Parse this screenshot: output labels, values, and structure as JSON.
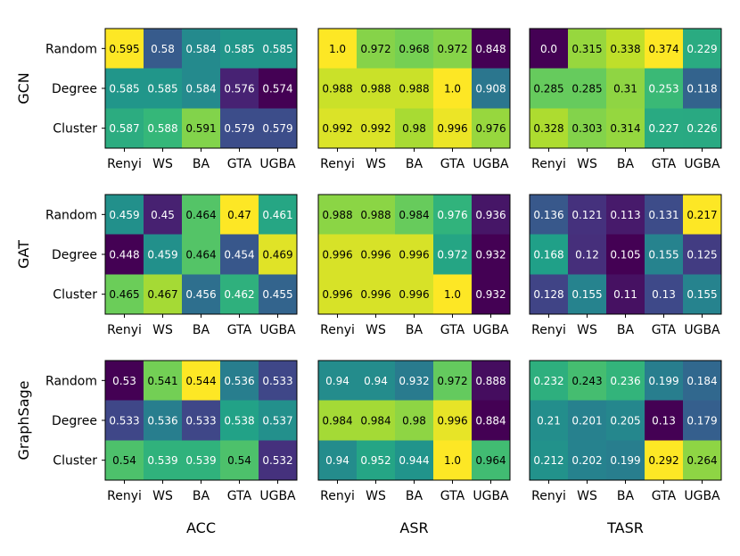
{
  "chart_data": {
    "type": "heatmap",
    "colormap": "viridis",
    "x_tick_labels": [
      "Renyi",
      "WS",
      "BA",
      "GTA",
      "UGBA"
    ],
    "y_tick_labels": [
      "Random",
      "Degree",
      "Cluster"
    ],
    "models": [
      "GCN",
      "GAT",
      "GraphSage"
    ],
    "metrics": [
      "ACC",
      "ASR",
      "TASR"
    ],
    "panels": [
      {
        "model": "GCN",
        "metric": "ACC",
        "values": [
          [
            "0.595",
            "0.58",
            "0.584",
            "0.585",
            "0.585"
          ],
          [
            "0.585",
            "0.585",
            "0.584",
            "0.576",
            "0.574"
          ],
          [
            "0.587",
            "0.588",
            "0.591",
            "0.579",
            "0.579"
          ]
        ]
      },
      {
        "model": "GCN",
        "metric": "ASR",
        "values": [
          [
            "1.0",
            "0.972",
            "0.968",
            "0.972",
            "0.848"
          ],
          [
            "0.988",
            "0.988",
            "0.988",
            "1.0",
            "0.908"
          ],
          [
            "0.992",
            "0.992",
            "0.98",
            "0.996",
            "0.976"
          ]
        ]
      },
      {
        "model": "GCN",
        "metric": "TASR",
        "values": [
          [
            "0.0",
            "0.315",
            "0.338",
            "0.374",
            "0.229"
          ],
          [
            "0.285",
            "0.285",
            "0.31",
            "0.253",
            "0.118"
          ],
          [
            "0.328",
            "0.303",
            "0.314",
            "0.227",
            "0.226"
          ]
        ]
      },
      {
        "model": "GAT",
        "metric": "ACC",
        "values": [
          [
            "0.459",
            "0.45",
            "0.464",
            "0.47",
            "0.461"
          ],
          [
            "0.448",
            "0.459",
            "0.464",
            "0.454",
            "0.469"
          ],
          [
            "0.465",
            "0.467",
            "0.456",
            "0.462",
            "0.455"
          ]
        ]
      },
      {
        "model": "GAT",
        "metric": "ASR",
        "values": [
          [
            "0.988",
            "0.988",
            "0.984",
            "0.976",
            "0.936"
          ],
          [
            "0.996",
            "0.996",
            "0.996",
            "0.972",
            "0.932"
          ],
          [
            "0.996",
            "0.996",
            "0.996",
            "1.0",
            "0.932"
          ]
        ]
      },
      {
        "model": "GAT",
        "metric": "TASR",
        "values": [
          [
            "0.136",
            "0.121",
            "0.113",
            "0.131",
            "0.217"
          ],
          [
            "0.168",
            "0.12",
            "0.105",
            "0.155",
            "0.125"
          ],
          [
            "0.128",
            "0.155",
            "0.11",
            "0.13",
            "0.155"
          ]
        ]
      },
      {
        "model": "GraphSage",
        "metric": "ACC",
        "values": [
          [
            "0.53",
            "0.541",
            "0.544",
            "0.536",
            "0.533"
          ],
          [
            "0.533",
            "0.536",
            "0.533",
            "0.538",
            "0.537"
          ],
          [
            "0.54",
            "0.539",
            "0.539",
            "0.54",
            "0.532"
          ]
        ]
      },
      {
        "model": "GraphSage",
        "metric": "ASR",
        "values": [
          [
            "0.94",
            "0.94",
            "0.932",
            "0.972",
            "0.888"
          ],
          [
            "0.984",
            "0.984",
            "0.98",
            "0.996",
            "0.884"
          ],
          [
            "0.94",
            "0.952",
            "0.944",
            "1.0",
            "0.964"
          ]
        ]
      },
      {
        "model": "GraphSage",
        "metric": "TASR",
        "values": [
          [
            "0.232",
            "0.243",
            "0.236",
            "0.199",
            "0.184"
          ],
          [
            "0.21",
            "0.201",
            "0.205",
            "0.13",
            "0.179"
          ],
          [
            "0.212",
            "0.202",
            "0.199",
            "0.292",
            "0.264"
          ]
        ]
      }
    ]
  }
}
